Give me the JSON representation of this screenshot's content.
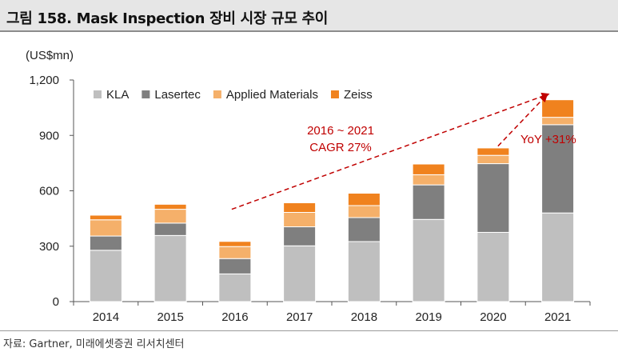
{
  "header": {
    "title": "그림 158. Mask Inspection 장비 시장 규모 추이"
  },
  "footer": {
    "source": "자료: Gartner, 미래에셋증권 리서치센터"
  },
  "chart_data": {
    "type": "bar",
    "stacked": true,
    "unit_label": "(US$mn)",
    "categories": [
      "2014",
      "2015",
      "2016",
      "2017",
      "2018",
      "2019",
      "2020",
      "2021"
    ],
    "series": [
      {
        "name": "KLA",
        "color": "#bfbfbf",
        "values": [
          278,
          358,
          150,
          302,
          325,
          445,
          375,
          480
        ]
      },
      {
        "name": "Lasertec",
        "color": "#7f7f7f",
        "values": [
          77,
          67,
          83,
          103,
          130,
          187,
          372,
          478
        ]
      },
      {
        "name": "Applied Materials",
        "color": "#f5b06a",
        "values": [
          88,
          75,
          65,
          78,
          65,
          55,
          45,
          40
        ]
      },
      {
        "name": "Zeiss",
        "color": "#f0821e",
        "values": [
          25,
          27,
          28,
          52,
          67,
          58,
          40,
          95
        ]
      }
    ],
    "ylim": [
      0,
      1200
    ],
    "yticks": [
      0,
      300,
      600,
      900,
      1200
    ],
    "ytick_labels": [
      "0",
      "300",
      "600",
      "900",
      "1,200"
    ],
    "grid": false,
    "legend_position": "top-left",
    "annotations": [
      {
        "id": "cagr",
        "lines": [
          "2016 ~ 2021",
          "CAGR 27%"
        ],
        "color": "#c00000"
      },
      {
        "id": "yoy",
        "lines": [
          "YoY +31%"
        ],
        "color": "#c00000"
      }
    ]
  }
}
